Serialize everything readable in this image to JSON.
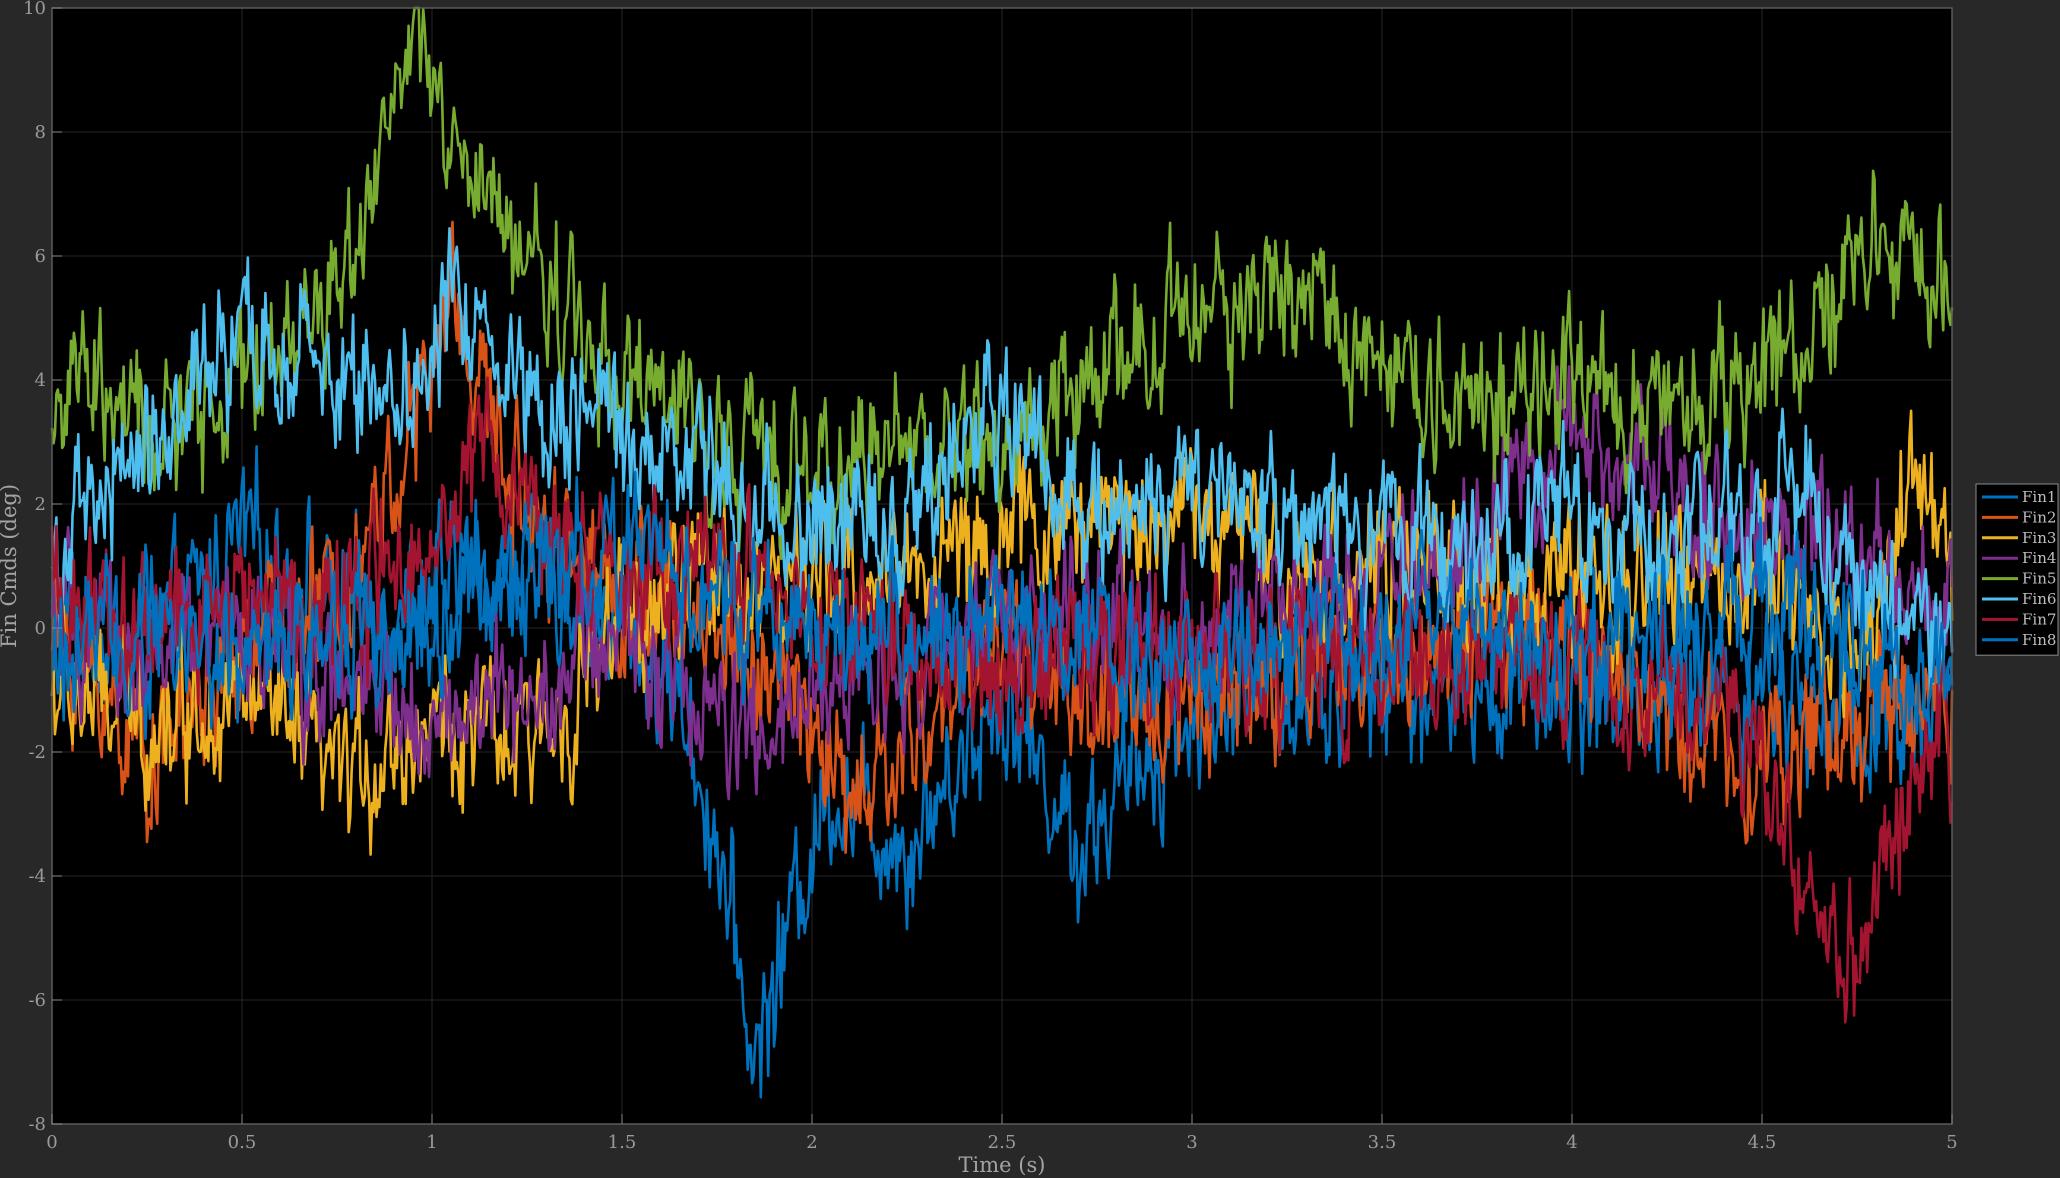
{
  "chart_data": {
    "type": "line",
    "title": "",
    "xlabel": "Time (s)",
    "ylabel": "Fin Cmds (deg)",
    "xlim": [
      0,
      5
    ],
    "ylim": [
      -8,
      10
    ],
    "xticks": [
      0,
      0.5,
      1,
      1.5,
      2,
      2.5,
      3,
      3.5,
      4,
      4.5,
      5
    ],
    "xtick_labels": [
      "0",
      "0.5",
      "1",
      "1.5",
      "2",
      "2.5",
      "3",
      "3.5",
      "4",
      "4.5",
      "5"
    ],
    "yticks": [
      -8,
      -6,
      -4,
      -2,
      0,
      2,
      4,
      6,
      8,
      10
    ],
    "ytick_labels": [
      "-8",
      "-6",
      "-4",
      "-2",
      "0",
      "2",
      "4",
      "6",
      "8",
      "10"
    ],
    "grid": true,
    "legend_position": "right-center",
    "background": "#000000",
    "series": [
      {
        "name": "Fin1",
        "color": "#0072BD",
        "x": [
          0,
          0.25,
          0.5,
          0.75,
          1,
          1.25,
          1.5,
          1.65,
          1.75,
          1.85,
          1.95,
          2.05,
          2.25,
          2.5,
          2.7,
          2.9,
          3.1,
          3.5,
          4,
          4.5,
          4.75,
          5
        ],
        "y": [
          0.3,
          -0.5,
          1.5,
          0.5,
          0.5,
          1,
          0,
          -1,
          -3.5,
          -7,
          -4.5,
          -2.5,
          -3.5,
          -1,
          -3.5,
          -2,
          -1,
          -1,
          -1,
          -1,
          -1.5,
          -1
        ]
      },
      {
        "name": "Fin2",
        "color": "#D95319",
        "x": [
          0,
          0.25,
          0.5,
          0.75,
          0.9,
          1,
          1.05,
          1.2,
          1.5,
          1.75,
          2,
          2.1,
          2.25,
          2.5,
          2.75,
          3,
          3.5,
          4,
          4.25,
          4.5,
          4.75,
          5
        ],
        "y": [
          0,
          -2,
          -0.5,
          0.5,
          2.5,
          4,
          5.5,
          2.5,
          0.5,
          0,
          -1.5,
          -3,
          -2,
          0,
          -1.5,
          -1,
          -0.5,
          0,
          -1.5,
          -2,
          -1.5,
          -1
        ]
      },
      {
        "name": "Fin3",
        "color": "#EDB120",
        "x": [
          0,
          0.25,
          0.5,
          0.75,
          1,
          1.25,
          1.5,
          1.75,
          2,
          2.5,
          3,
          3.25,
          3.5,
          4,
          4.5,
          4.75,
          4.9,
          5
        ],
        "y": [
          -1,
          -1.5,
          -1,
          -2.5,
          -1.5,
          -2,
          0,
          1,
          0.5,
          1.5,
          2,
          1,
          1,
          0.5,
          1,
          -0.5,
          2.5,
          1
        ]
      },
      {
        "name": "Fin4",
        "color": "#7E2F8E",
        "x": [
          0,
          0.25,
          0.5,
          0.75,
          1,
          1.25,
          1.5,
          1.75,
          1.9,
          2,
          2.25,
          2.5,
          3,
          3.5,
          3.75,
          4,
          4.25,
          4.5,
          4.75,
          5
        ],
        "y": [
          0,
          -0.5,
          0,
          -1,
          -1.5,
          -1,
          0,
          -1.5,
          -2,
          -1,
          -0.5,
          0,
          0,
          0.5,
          1.5,
          3,
          2.5,
          1.5,
          1,
          0
        ]
      },
      {
        "name": "Fin5",
        "color": "#77AC30",
        "x": [
          0,
          0.1,
          0.25,
          0.5,
          0.75,
          0.9,
          0.97,
          1.05,
          1.25,
          1.5,
          1.75,
          2,
          2.25,
          2.5,
          2.75,
          3,
          3.25,
          3.5,
          3.75,
          4,
          4.25,
          4.5,
          4.75,
          5
        ],
        "y": [
          3.5,
          4,
          3,
          4,
          5.5,
          8.5,
          9.5,
          7.5,
          6,
          4,
          3,
          2.5,
          3,
          3,
          4,
          5,
          5.5,
          4.5,
          3.5,
          4,
          3.5,
          4,
          6,
          5.5
        ]
      },
      {
        "name": "Fin6",
        "color": "#4DBEEE",
        "x": [
          0,
          0.25,
          0.5,
          0.75,
          1,
          1.05,
          1.25,
          1.5,
          1.75,
          2,
          2.25,
          2.5,
          2.75,
          3,
          3.25,
          3.5,
          4,
          4.25,
          4.5,
          4.6,
          4.75,
          5
        ],
        "y": [
          1,
          3,
          4.5,
          4,
          4,
          5.5,
          4,
          3,
          2.5,
          1.5,
          2,
          3.5,
          2,
          2,
          1.5,
          1.5,
          1.5,
          1.5,
          1.5,
          2.5,
          0.5,
          0
        ]
      },
      {
        "name": "Fin7",
        "color": "#A2142F",
        "x": [
          0,
          0.25,
          0.5,
          0.75,
          1,
          1.1,
          1.25,
          1.5,
          1.75,
          2,
          2.5,
          3,
          3.5,
          4,
          4.25,
          4.5,
          4.6,
          4.7,
          4.8,
          4.9,
          5
        ],
        "y": [
          0.5,
          0,
          0.5,
          0.5,
          1.5,
          3,
          2,
          0.5,
          1,
          0,
          -0.5,
          -0.5,
          -0.5,
          -0.5,
          -1,
          -2,
          -4,
          -5.5,
          -4.5,
          -2.5,
          -1.5
        ]
      },
      {
        "name": "Fin8",
        "color": "#0072BD",
        "x": [
          0,
          0.25,
          0.5,
          0.75,
          1,
          1.25,
          1.5,
          1.75,
          2,
          2.25,
          2.5,
          2.75,
          3,
          3.5,
          4,
          4.5,
          4.75,
          5
        ],
        "y": [
          -0.5,
          0,
          -0.5,
          0,
          0,
          1,
          1.5,
          0.5,
          0,
          -0.5,
          0.5,
          -0.5,
          -0.5,
          0,
          -0.5,
          0.5,
          -0.5,
          -1
        ]
      }
    ]
  }
}
